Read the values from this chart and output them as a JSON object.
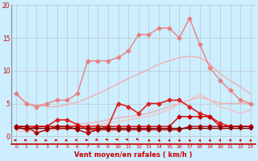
{
  "x": [
    0,
    1,
    2,
    3,
    4,
    5,
    6,
    7,
    8,
    9,
    10,
    11,
    12,
    13,
    14,
    15,
    16,
    17,
    18,
    19,
    20,
    21,
    22,
    23
  ],
  "series": [
    {
      "name": "smooth_upper",
      "color": "#f0b0b0",
      "linewidth": 1.0,
      "marker": null,
      "values": [
        6.5,
        5.0,
        4.8,
        4.5,
        4.5,
        4.8,
        5.2,
        5.8,
        6.5,
        7.2,
        8.0,
        8.8,
        9.5,
        10.2,
        11.0,
        11.5,
        12.0,
        12.2,
        12.0,
        11.0,
        9.5,
        8.5,
        7.5,
        6.5
      ]
    },
    {
      "name": "smooth_lower",
      "color": "#f0b0b0",
      "linewidth": 1.0,
      "marker": null,
      "values": [
        1.2,
        1.2,
        1.2,
        1.2,
        1.2,
        1.5,
        1.8,
        2.0,
        2.2,
        2.5,
        2.8,
        3.0,
        3.2,
        3.5,
        4.0,
        4.5,
        5.0,
        5.5,
        6.0,
        5.5,
        5.0,
        5.0,
        5.0,
        5.0
      ]
    },
    {
      "name": "peaked_upper",
      "color": "#e88080",
      "linewidth": 1.0,
      "marker": "D",
      "markersize": 2.5,
      "values": [
        6.5,
        5.0,
        4.5,
        5.0,
        5.5,
        5.5,
        6.5,
        11.5,
        11.5,
        11.5,
        12.0,
        13.0,
        15.5,
        15.5,
        16.5,
        16.5,
        15.0,
        18.0,
        14.0,
        10.5,
        8.5,
        7.0,
        5.5,
        5.0
      ]
    },
    {
      "name": "mid_smooth",
      "color": "#f5c0c0",
      "linewidth": 1.0,
      "marker": null,
      "values": [
        0.8,
        0.8,
        0.8,
        0.8,
        1.0,
        1.0,
        1.2,
        1.5,
        1.8,
        2.0,
        2.2,
        2.5,
        2.8,
        3.0,
        3.5,
        4.0,
        5.0,
        5.5,
        6.5,
        5.5,
        4.5,
        4.0,
        3.5,
        4.0
      ]
    },
    {
      "name": "volatile_red",
      "color": "#dd2222",
      "linewidth": 1.2,
      "marker": "D",
      "markersize": 2.5,
      "values": [
        1.5,
        1.0,
        1.5,
        1.5,
        2.5,
        2.5,
        1.8,
        1.0,
        1.0,
        1.5,
        5.0,
        4.5,
        3.5,
        5.0,
        5.0,
        5.5,
        5.5,
        4.5,
        3.5,
        3.0,
        2.0,
        1.5,
        1.5,
        1.5
      ]
    },
    {
      "name": "flat_dark1",
      "color": "#cc0000",
      "linewidth": 1.0,
      "marker": "D",
      "markersize": 2.5,
      "values": [
        1.5,
        1.5,
        1.5,
        1.5,
        1.5,
        1.5,
        1.5,
        1.5,
        1.5,
        1.5,
        1.5,
        1.5,
        1.5,
        1.5,
        1.5,
        1.5,
        3.0,
        3.0,
        3.0,
        3.0,
        1.5,
        1.5,
        1.5,
        1.5
      ]
    },
    {
      "name": "flat_dark2",
      "color": "#aa0000",
      "linewidth": 1.0,
      "marker": "D",
      "markersize": 2.5,
      "values": [
        1.5,
        1.5,
        0.5,
        1.0,
        1.5,
        1.5,
        1.0,
        0.5,
        1.0,
        1.0,
        1.0,
        1.0,
        1.0,
        1.0,
        1.0,
        1.0,
        1.0,
        1.5,
        1.5,
        1.5,
        1.5,
        1.5,
        1.5,
        1.5
      ]
    },
    {
      "name": "flat_darkest",
      "color": "#880000",
      "linewidth": 1.0,
      "marker": "D",
      "markersize": 2.0,
      "values": [
        1.2,
        1.2,
        1.2,
        1.2,
        1.2,
        1.2,
        1.2,
        1.2,
        1.2,
        1.2,
        1.2,
        1.2,
        1.2,
        1.2,
        1.2,
        1.2,
        1.2,
        1.2,
        1.2,
        1.2,
        1.2,
        1.2,
        1.2,
        1.2
      ]
    }
  ],
  "arrow_angles": [
    90,
    90,
    90,
    100,
    90,
    100,
    80,
    70,
    60,
    50,
    50,
    50,
    40,
    35,
    30,
    30,
    25,
    30,
    30,
    20,
    10,
    0,
    350,
    340
  ],
  "background_color": "#cceeff",
  "grid_color": "#bbbbbb",
  "xlabel": "Vent moyen/en rafales ( km/h )",
  "xlabel_color": "#cc0000",
  "tick_color": "#cc0000",
  "ylim": [
    0,
    20
  ],
  "xlim": [
    -0.5,
    23.5
  ],
  "yticks": [
    0,
    5,
    10,
    15,
    20
  ],
  "xticks": [
    0,
    1,
    2,
    3,
    4,
    5,
    6,
    7,
    8,
    9,
    10,
    11,
    12,
    13,
    14,
    15,
    16,
    17,
    18,
    19,
    20,
    21,
    22,
    23
  ]
}
